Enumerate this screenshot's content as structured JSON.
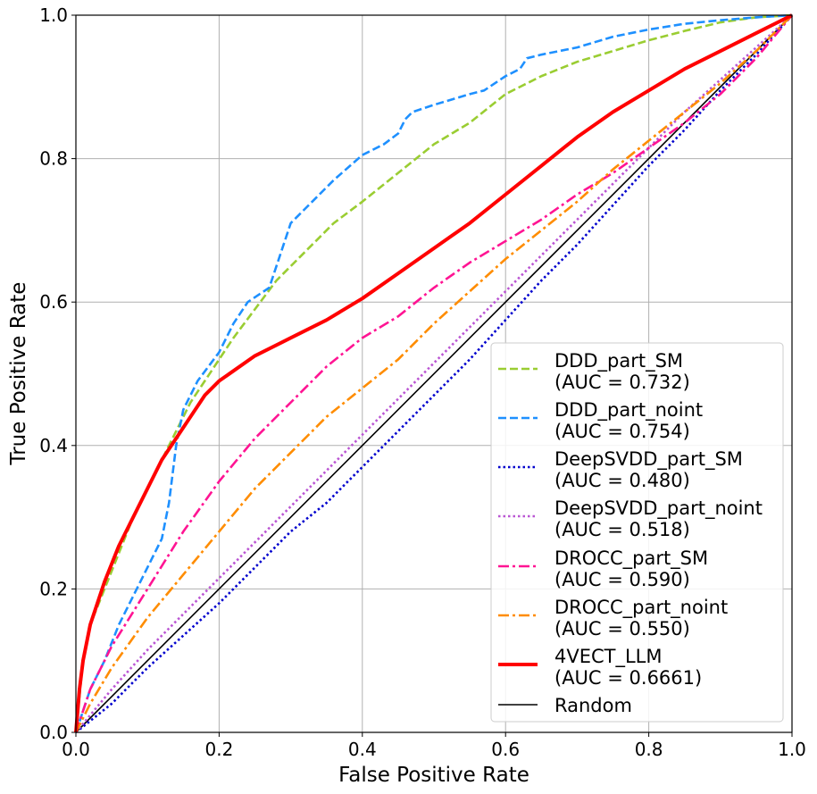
{
  "chart_data": {
    "type": "line",
    "title": "",
    "xlabel": "False Positive Rate",
    "ylabel": "True Positive Rate",
    "xlim": [
      0.0,
      1.0
    ],
    "ylim": [
      0.0,
      1.0
    ],
    "grid": true,
    "legend_position": "lower-right",
    "xticks": [
      "0.0",
      "0.2",
      "0.4",
      "0.6",
      "0.8",
      "1.0"
    ],
    "yticks": [
      "0.0",
      "0.2",
      "0.4",
      "0.6",
      "0.8",
      "1.0"
    ],
    "series": [
      {
        "name": "DDD_part_SM",
        "label_line1": "DDD_part_SM",
        "label_line2": "(AUC = 0.732)",
        "color": "#9acd32",
        "style": "dashed",
        "x": [
          0,
          0.01,
          0.02,
          0.04,
          0.06,
          0.08,
          0.1,
          0.12,
          0.14,
          0.16,
          0.18,
          0.2,
          0.22,
          0.25,
          0.28,
          0.3,
          0.33,
          0.36,
          0.4,
          0.45,
          0.5,
          0.55,
          0.6,
          0.65,
          0.7,
          0.75,
          0.8,
          0.85,
          0.9,
          0.95,
          1.0
        ],
        "y": [
          0,
          0.1,
          0.15,
          0.2,
          0.25,
          0.3,
          0.34,
          0.38,
          0.42,
          0.46,
          0.49,
          0.52,
          0.55,
          0.59,
          0.63,
          0.65,
          0.68,
          0.71,
          0.74,
          0.78,
          0.82,
          0.85,
          0.89,
          0.915,
          0.935,
          0.95,
          0.965,
          0.978,
          0.99,
          0.997,
          1.0
        ]
      },
      {
        "name": "DDD_part_noint",
        "label_line1": "DDD_part_noint",
        "label_line2": "(AUC = 0.754)",
        "color": "#1e90ff",
        "style": "dashed",
        "x": [
          0,
          0.02,
          0.04,
          0.06,
          0.08,
          0.1,
          0.12,
          0.13,
          0.14,
          0.15,
          0.17,
          0.2,
          0.22,
          0.24,
          0.27,
          0.29,
          0.3,
          0.33,
          0.36,
          0.4,
          0.43,
          0.45,
          0.46,
          0.47,
          0.5,
          0.55,
          0.57,
          0.6,
          0.62,
          0.63,
          0.65,
          0.7,
          0.75,
          0.8,
          0.85,
          0.9,
          0.95,
          1.0
        ],
        "y": [
          0,
          0.06,
          0.1,
          0.15,
          0.19,
          0.23,
          0.27,
          0.32,
          0.4,
          0.45,
          0.49,
          0.53,
          0.57,
          0.6,
          0.62,
          0.68,
          0.71,
          0.74,
          0.77,
          0.805,
          0.82,
          0.835,
          0.855,
          0.865,
          0.875,
          0.89,
          0.895,
          0.915,
          0.925,
          0.94,
          0.945,
          0.955,
          0.97,
          0.98,
          0.988,
          0.993,
          0.997,
          1.0
        ]
      },
      {
        "name": "DeepSVDD_part_SM",
        "label_line1": "DeepSVDD_part_SM",
        "label_line2": "(AUC = 0.480)",
        "color": "#0000cd",
        "style": "dotted",
        "x": [
          0,
          0.05,
          0.1,
          0.15,
          0.2,
          0.25,
          0.3,
          0.35,
          0.4,
          0.45,
          0.5,
          0.55,
          0.6,
          0.65,
          0.7,
          0.75,
          0.8,
          0.85,
          0.9,
          0.95,
          1.0
        ],
        "y": [
          0,
          0.04,
          0.09,
          0.135,
          0.18,
          0.23,
          0.28,
          0.32,
          0.37,
          0.42,
          0.47,
          0.52,
          0.575,
          0.63,
          0.68,
          0.735,
          0.79,
          0.84,
          0.895,
          0.945,
          1.0
        ]
      },
      {
        "name": "DeepSVDD_part_noint",
        "label_line1": "DeepSVDD_part_noint",
        "label_line2": "(AUC = 0.518)",
        "color": "#ba55d3",
        "style": "dotted",
        "x": [
          0,
          0.05,
          0.1,
          0.15,
          0.2,
          0.25,
          0.3,
          0.35,
          0.4,
          0.45,
          0.5,
          0.55,
          0.6,
          0.65,
          0.7,
          0.75,
          0.8,
          0.85,
          0.9,
          0.95,
          1.0
        ],
        "y": [
          0,
          0.06,
          0.115,
          0.165,
          0.215,
          0.265,
          0.315,
          0.365,
          0.415,
          0.465,
          0.515,
          0.565,
          0.615,
          0.665,
          0.715,
          0.765,
          0.815,
          0.865,
          0.91,
          0.955,
          1.0
        ]
      },
      {
        "name": "DROCC_part_SM",
        "label_line1": "DROCC_part_SM",
        "label_line2": "(AUC = 0.590)",
        "color": "#ff1493",
        "style": "dashdot",
        "x": [
          0,
          0.02,
          0.05,
          0.1,
          0.15,
          0.2,
          0.25,
          0.3,
          0.35,
          0.4,
          0.45,
          0.5,
          0.55,
          0.6,
          0.65,
          0.7,
          0.75,
          0.8,
          0.85,
          0.9,
          0.95,
          1.0
        ],
        "y": [
          0,
          0.06,
          0.12,
          0.2,
          0.28,
          0.35,
          0.41,
          0.46,
          0.51,
          0.55,
          0.58,
          0.62,
          0.655,
          0.685,
          0.715,
          0.75,
          0.78,
          0.815,
          0.85,
          0.89,
          0.94,
          1.0
        ]
      },
      {
        "name": "DROCC_part_noint",
        "label_line1": "DROCC_part_noint",
        "label_line2": "(AUC = 0.550)",
        "color": "#ff8c00",
        "style": "dashdot",
        "x": [
          0,
          0.02,
          0.05,
          0.1,
          0.15,
          0.2,
          0.25,
          0.3,
          0.35,
          0.4,
          0.45,
          0.5,
          0.55,
          0.6,
          0.65,
          0.7,
          0.75,
          0.8,
          0.85,
          0.9,
          0.95,
          1.0
        ],
        "y": [
          0,
          0.04,
          0.09,
          0.16,
          0.22,
          0.28,
          0.34,
          0.39,
          0.44,
          0.48,
          0.52,
          0.57,
          0.615,
          0.66,
          0.7,
          0.74,
          0.785,
          0.825,
          0.865,
          0.905,
          0.95,
          1.0
        ]
      },
      {
        "name": "4VECT_LLM",
        "label_line1": "4VECT_LLM",
        "label_line2": "(AUC = 0.6661)",
        "color": "#ff0000",
        "style": "solid-thick",
        "x": [
          0,
          0.005,
          0.01,
          0.02,
          0.04,
          0.06,
          0.08,
          0.1,
          0.12,
          0.14,
          0.16,
          0.18,
          0.2,
          0.25,
          0.3,
          0.35,
          0.4,
          0.45,
          0.5,
          0.55,
          0.6,
          0.65,
          0.7,
          0.75,
          0.8,
          0.85,
          0.9,
          0.95,
          1.0
        ],
        "y": [
          0,
          0.06,
          0.1,
          0.15,
          0.21,
          0.26,
          0.3,
          0.34,
          0.38,
          0.41,
          0.44,
          0.47,
          0.49,
          0.525,
          0.55,
          0.575,
          0.605,
          0.64,
          0.675,
          0.71,
          0.75,
          0.79,
          0.83,
          0.865,
          0.895,
          0.925,
          0.95,
          0.975,
          1.0
        ]
      },
      {
        "name": "Random",
        "label_line1": "Random",
        "label_line2": "",
        "color": "#000000",
        "style": "solid",
        "x": [
          0,
          1.0
        ],
        "y": [
          0,
          1.0
        ]
      }
    ]
  }
}
